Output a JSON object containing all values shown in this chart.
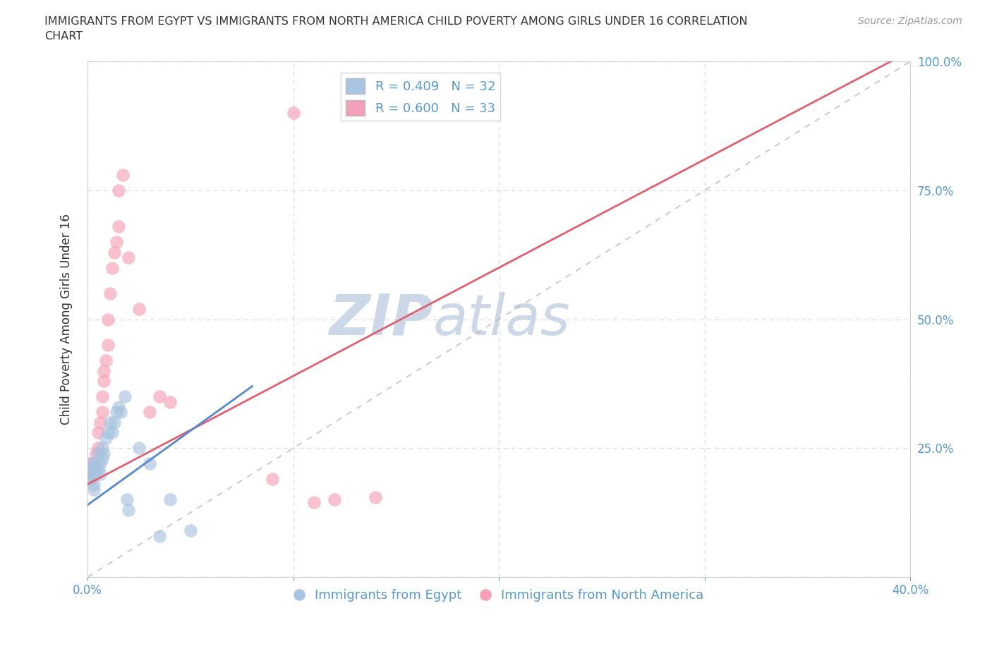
{
  "title_line1": "IMMIGRANTS FROM EGYPT VS IMMIGRANTS FROM NORTH AMERICA CHILD POVERTY AMONG GIRLS UNDER 16 CORRELATION",
  "title_line2": "CHART",
  "source": "Source: ZipAtlas.com",
  "ylabel": "Child Poverty Among Girls Under 16",
  "xlim": [
    0.0,
    0.4
  ],
  "ylim": [
    0.0,
    1.0
  ],
  "blue_color": "#a8c4e0",
  "pink_color": "#f4a0b8",
  "blue_line_color": "#5588cc",
  "pink_line_color": "#e06070",
  "blue_scatter": [
    [
      0.001,
      0.2
    ],
    [
      0.001,
      0.19
    ],
    [
      0.002,
      0.22
    ],
    [
      0.002,
      0.2
    ],
    [
      0.003,
      0.21
    ],
    [
      0.003,
      0.18
    ],
    [
      0.003,
      0.17
    ],
    [
      0.004,
      0.22
    ],
    [
      0.004,
      0.2
    ],
    [
      0.005,
      0.24
    ],
    [
      0.005,
      0.21
    ],
    [
      0.006,
      0.22
    ],
    [
      0.006,
      0.2
    ],
    [
      0.007,
      0.25
    ],
    [
      0.007,
      0.23
    ],
    [
      0.008,
      0.24
    ],
    [
      0.009,
      0.27
    ],
    [
      0.01,
      0.28
    ],
    [
      0.011,
      0.3
    ],
    [
      0.012,
      0.28
    ],
    [
      0.013,
      0.3
    ],
    [
      0.014,
      0.32
    ],
    [
      0.015,
      0.33
    ],
    [
      0.016,
      0.32
    ],
    [
      0.018,
      0.35
    ],
    [
      0.019,
      0.15
    ],
    [
      0.02,
      0.13
    ],
    [
      0.025,
      0.25
    ],
    [
      0.03,
      0.22
    ],
    [
      0.035,
      0.08
    ],
    [
      0.04,
      0.15
    ],
    [
      0.05,
      0.09
    ]
  ],
  "pink_scatter": [
    [
      0.001,
      0.22
    ],
    [
      0.002,
      0.2
    ],
    [
      0.002,
      0.19
    ],
    [
      0.003,
      0.22
    ],
    [
      0.003,
      0.21
    ],
    [
      0.004,
      0.24
    ],
    [
      0.005,
      0.25
    ],
    [
      0.005,
      0.28
    ],
    [
      0.006,
      0.3
    ],
    [
      0.007,
      0.35
    ],
    [
      0.007,
      0.32
    ],
    [
      0.008,
      0.38
    ],
    [
      0.008,
      0.4
    ],
    [
      0.009,
      0.42
    ],
    [
      0.01,
      0.45
    ],
    [
      0.01,
      0.5
    ],
    [
      0.011,
      0.55
    ],
    [
      0.012,
      0.6
    ],
    [
      0.013,
      0.63
    ],
    [
      0.014,
      0.65
    ],
    [
      0.015,
      0.68
    ],
    [
      0.017,
      0.78
    ],
    [
      0.025,
      0.52
    ],
    [
      0.03,
      0.32
    ],
    [
      0.035,
      0.35
    ],
    [
      0.04,
      0.34
    ],
    [
      0.09,
      0.19
    ],
    [
      0.1,
      0.9
    ],
    [
      0.11,
      0.145
    ],
    [
      0.12,
      0.15
    ],
    [
      0.14,
      0.155
    ],
    [
      0.015,
      0.75
    ],
    [
      0.02,
      0.62
    ]
  ],
  "watermark_zip": "ZIP",
  "watermark_atlas": "atlas",
  "watermark_color": "#ccd8e8",
  "legend_blue_label": "R = 0.409   N = 32",
  "legend_pink_label": "R = 0.600   N = 33",
  "legend_x_label": "Immigrants from Egypt",
  "legend_y_label": "Immigrants from North America",
  "tick_color": "#5599cc",
  "background_color": "#ffffff",
  "grid_color": "#cccccc",
  "title_color": "#333333",
  "source_color": "#999999",
  "ylabel_color": "#333333"
}
